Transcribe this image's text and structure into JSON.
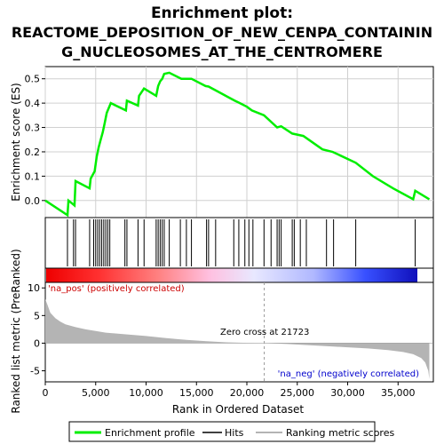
{
  "title_line1": "Enrichment plot:",
  "title_line2": "REACTOME_DEPOSITION_OF_NEW_CENPA_CONTAININ",
  "title_line3": "G_NUCLEOSOMES_AT_THE_CENTROMERE",
  "colors": {
    "enrichment": "#00ee00",
    "hits": "#000000",
    "ranking": "#b4b4b4",
    "grid": "#d0d0d0",
    "pos_label": "#cc0000",
    "neg_label": "#0000cc",
    "heat_pos": "#ff0000",
    "heat_neg": "#0000cc"
  },
  "chart_data": {
    "type": "line",
    "xlabel": "Rank in Ordered Dataset",
    "xlim": [
      0,
      38500
    ],
    "x_ticks": [
      0,
      5000,
      10000,
      15000,
      20000,
      25000,
      30000,
      35000
    ],
    "x_tick_labels": [
      "0",
      "5,000",
      "10,000",
      "15,000",
      "20,000",
      "25,000",
      "30,000",
      "35,000"
    ],
    "es_panel": {
      "ylabel": "Enrichment score (ES)",
      "ylim": [
        -0.07,
        0.55
      ],
      "y_ticks": [
        0.0,
        0.1,
        0.2,
        0.3,
        0.4,
        0.5
      ],
      "y_tick_labels": [
        "0.0",
        "0.1",
        "0.2",
        "0.3",
        "0.4",
        "0.5"
      ],
      "grid": true,
      "series": [
        {
          "name": "Enrichment profile",
          "x": [
            0,
            2200,
            2300,
            2900,
            3000,
            4400,
            4500,
            4900,
            5100,
            5300,
            5500,
            5700,
            5900,
            6100,
            6300,
            6500,
            8000,
            8100,
            9200,
            9300,
            9800,
            11000,
            11200,
            11400,
            11600,
            11800,
            12300,
            13500,
            14500,
            15900,
            16200,
            17000,
            18800,
            19300,
            20000,
            20500,
            21700,
            23000,
            23400,
            24500,
            25600,
            27500,
            28500,
            30800,
            32500,
            34500,
            36500,
            36700,
            38100
          ],
          "y": [
            0.0,
            -0.06,
            0.0,
            -0.02,
            0.08,
            0.05,
            0.09,
            0.12,
            0.18,
            0.22,
            0.25,
            0.28,
            0.32,
            0.36,
            0.38,
            0.4,
            0.37,
            0.41,
            0.39,
            0.43,
            0.46,
            0.43,
            0.47,
            0.49,
            0.5,
            0.52,
            0.525,
            0.5,
            0.5,
            0.47,
            0.468,
            0.45,
            0.41,
            0.4,
            0.385,
            0.37,
            0.35,
            0.3,
            0.305,
            0.275,
            0.265,
            0.21,
            0.2,
            0.155,
            0.1,
            0.05,
            0.005,
            0.04,
            0.005
          ]
        }
      ]
    },
    "hits_panel": {
      "name": "Hits",
      "positions": [
        2200,
        2800,
        3000,
        4400,
        4800,
        5000,
        5200,
        5400,
        5600,
        5800,
        6000,
        6200,
        6400,
        7900,
        8100,
        9200,
        9800,
        11000,
        11200,
        11400,
        11600,
        11800,
        12300,
        13400,
        14000,
        14500,
        16000,
        16200,
        16900,
        18700,
        19200,
        19800,
        20200,
        20600,
        21700,
        22400,
        23000,
        23200,
        23400,
        24500,
        24700,
        25300,
        25900,
        27900,
        28600,
        30800,
        36700
      ]
    },
    "ranking_panel": {
      "name": "Ranking metric scores",
      "ylabel": "Ranked list metric (PreRanked)",
      "ylim": [
        -7,
        11
      ],
      "y_ticks": [
        10,
        5,
        0,
        -5
      ],
      "y_tick_labels": [
        "10",
        "5",
        "0",
        "-5"
      ],
      "x": [
        0,
        200,
        500,
        1000,
        1500,
        2000,
        3000,
        4000,
        5000,
        6000,
        8000,
        10000,
        12000,
        14000,
        16000,
        18000,
        20000,
        21723,
        24000,
        26000,
        28000,
        30000,
        32000,
        34000,
        35500,
        36500,
        37300,
        37700,
        38000,
        38100
      ],
      "values": [
        8.0,
        7.0,
        5.5,
        4.5,
        3.9,
        3.4,
        2.9,
        2.5,
        2.2,
        1.9,
        1.6,
        1.3,
        0.9,
        0.6,
        0.35,
        0.15,
        0.05,
        0.0,
        -0.15,
        -0.35,
        -0.55,
        -0.75,
        -0.95,
        -1.25,
        -1.6,
        -2.0,
        -2.7,
        -3.5,
        -5.0,
        -6.5
      ],
      "zero_cross_rank": 21723,
      "zero_cross_label": "Zero cross at 21723",
      "pos_label": "'na_pos' (positively correlated)",
      "neg_label": "'na_neg' (negatively correlated)"
    },
    "legend": {
      "placement": "bottom",
      "entries": [
        "Enrichment profile",
        "Hits",
        "Ranking metric scores"
      ]
    }
  }
}
